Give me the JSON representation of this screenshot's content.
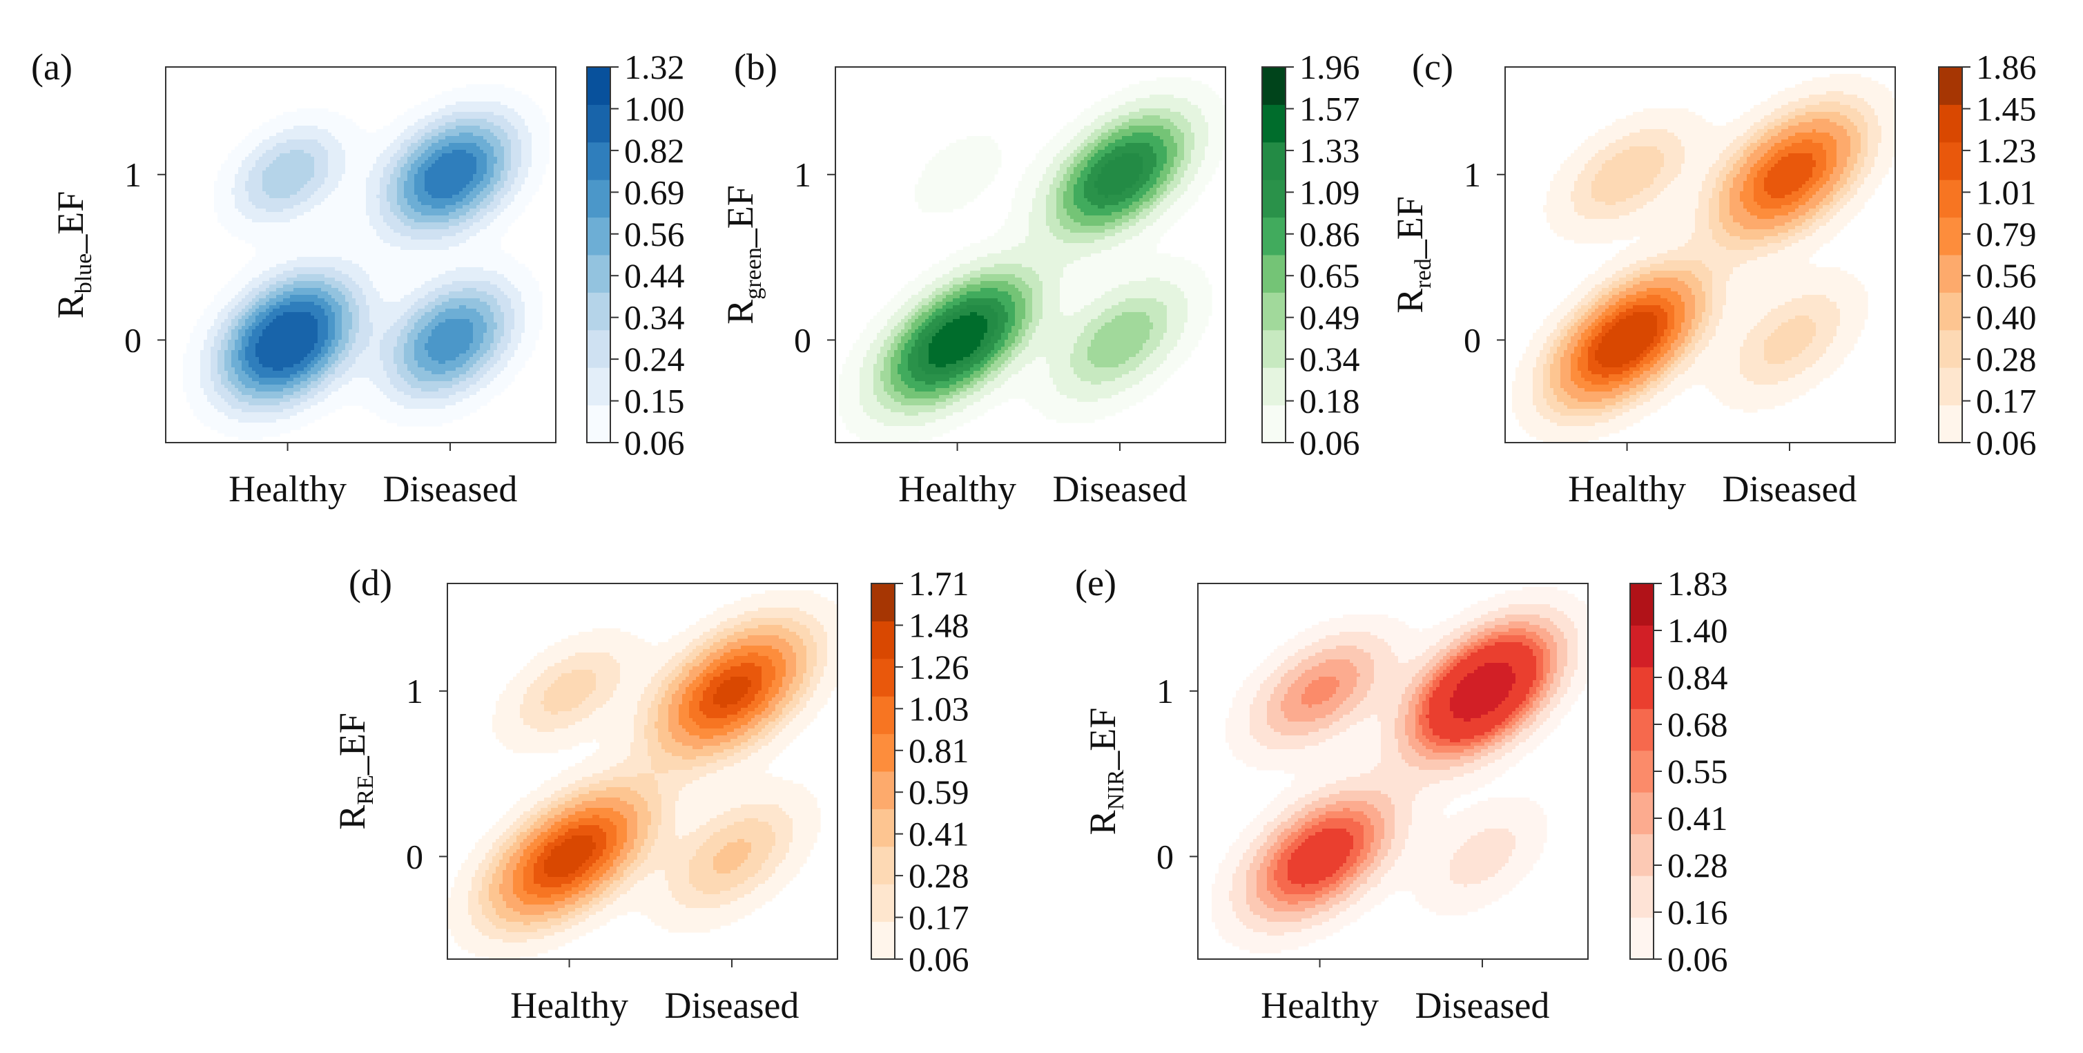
{
  "figure": {
    "description_hidden": false
  },
  "chart_data": [
    {
      "panel": "(a)",
      "type": "heatmap",
      "subtype": "kde-contour",
      "categories": [
        "Healthy",
        "Diseased"
      ],
      "y_ticks": [
        "0",
        "1"
      ],
      "ylabel": {
        "base": "R",
        "sub": "blue",
        "suffix": "_EF"
      },
      "xlim": [
        -0.75,
        1.65
      ],
      "ylim": [
        -0.62,
        1.65
      ],
      "colormap": "blues",
      "colorbar_ticks": [
        "0.06",
        "0.15",
        "0.24",
        "0.34",
        "0.44",
        "0.56",
        "0.69",
        "0.82",
        "1.00",
        "1.32"
      ],
      "colors": [
        "#f7fbff",
        "#e3eef9",
        "#cfe1f2",
        "#b5d4e9",
        "#93c3df",
        "#6daed5",
        "#4b97c9",
        "#2f7ebc",
        "#1864aa",
        "#08519c"
      ],
      "peaks": [
        {
          "x": 0,
          "y": 0,
          "density": 1.32,
          "sx": 0.26,
          "sy": 0.24,
          "rho": 0.35
        },
        {
          "x": 1,
          "y": 1,
          "density": 1.0,
          "sx": 0.26,
          "sy": 0.23,
          "rho": 0.35
        },
        {
          "x": 1,
          "y": 0,
          "density": 0.82,
          "sx": 0.25,
          "sy": 0.23,
          "rho": 0.35
        },
        {
          "x": 0,
          "y": 1,
          "density": 0.44,
          "sx": 0.23,
          "sy": 0.2,
          "rho": 0.35
        }
      ]
    },
    {
      "panel": "(b)",
      "type": "heatmap",
      "subtype": "kde-contour",
      "categories": [
        "Healthy",
        "Diseased"
      ],
      "y_ticks": [
        "0",
        "1"
      ],
      "ylabel": {
        "base": "R",
        "sub": "green",
        "suffix": "_EF"
      },
      "xlim": [
        -0.75,
        1.65
      ],
      "ylim": [
        -0.62,
        1.65
      ],
      "colormap": "greens",
      "colorbar_ticks": [
        "0.06",
        "0.18",
        "0.34",
        "0.49",
        "0.65",
        "0.86",
        "1.09",
        "1.33",
        "1.57",
        "1.96"
      ],
      "colors": [
        "#f7fcf5",
        "#e5f5e0",
        "#c7e9c0",
        "#a1d99b",
        "#74c476",
        "#41ab5d",
        "#2a924a",
        "#238b45",
        "#006d2c",
        "#00441b"
      ],
      "peaks": [
        {
          "x": 0,
          "y": 0,
          "density": 1.96,
          "sx": 0.28,
          "sy": 0.24,
          "rho": 0.55
        },
        {
          "x": 1,
          "y": 1,
          "density": 1.57,
          "sx": 0.26,
          "sy": 0.23,
          "rho": 0.5
        },
        {
          "x": 1,
          "y": 0,
          "density": 0.65,
          "sx": 0.26,
          "sy": 0.23,
          "rho": 0.5
        },
        {
          "x": 0,
          "y": 1,
          "density": 0.12,
          "sx": 0.22,
          "sy": 0.2,
          "rho": 0.5
        }
      ]
    },
    {
      "panel": "(c)",
      "type": "heatmap",
      "subtype": "kde-contour",
      "categories": [
        "Healthy",
        "Diseased"
      ],
      "y_ticks": [
        "0",
        "1"
      ],
      "ylabel": {
        "base": "R",
        "sub": "red",
        "suffix": "_EF"
      },
      "xlim": [
        -0.75,
        1.65
      ],
      "ylim": [
        -0.62,
        1.65
      ],
      "colormap": "oranges",
      "colorbar_ticks": [
        "0.06",
        "0.17",
        "0.28",
        "0.40",
        "0.56",
        "0.79",
        "1.01",
        "1.23",
        "1.45",
        "1.86"
      ],
      "colors": [
        "#fff5eb",
        "#fee6ce",
        "#fdd9b4",
        "#fdc591",
        "#fdaa6c",
        "#fd8d3c",
        "#f77522",
        "#e9580c",
        "#d94801",
        "#a63603"
      ],
      "peaks": [
        {
          "x": 0,
          "y": 0,
          "density": 1.86,
          "sx": 0.27,
          "sy": 0.24,
          "rho": 0.55
        },
        {
          "x": 1,
          "y": 1,
          "density": 1.45,
          "sx": 0.27,
          "sy": 0.24,
          "rho": 0.5
        },
        {
          "x": 0,
          "y": 1,
          "density": 0.4,
          "sx": 0.26,
          "sy": 0.21,
          "rho": 0.5
        },
        {
          "x": 1,
          "y": 0,
          "density": 0.34,
          "sx": 0.26,
          "sy": 0.23,
          "rho": 0.5
        }
      ]
    },
    {
      "panel": "(d)",
      "type": "heatmap",
      "subtype": "kde-contour",
      "categories": [
        "Healthy",
        "Diseased"
      ],
      "y_ticks": [
        "0",
        "1"
      ],
      "ylabel": {
        "base": "R",
        "sub": "RE",
        "suffix": "_EF"
      },
      "xlim": [
        -0.75,
        1.65
      ],
      "ylim": [
        -0.62,
        1.65
      ],
      "colormap": "oranges",
      "colorbar_ticks": [
        "0.06",
        "0.17",
        "0.28",
        "0.41",
        "0.59",
        "0.81",
        "1.03",
        "1.26",
        "1.48",
        "1.71"
      ],
      "colors": [
        "#fff5eb",
        "#fee6ce",
        "#fdd9b4",
        "#fdc591",
        "#fdaa6c",
        "#fd8d3c",
        "#f77522",
        "#e9580c",
        "#d94801",
        "#a63603"
      ],
      "peaks": [
        {
          "x": 0,
          "y": 0,
          "density": 1.71,
          "sx": 0.29,
          "sy": 0.24,
          "rho": 0.55
        },
        {
          "x": 1,
          "y": 1,
          "density": 1.6,
          "sx": 0.28,
          "sy": 0.24,
          "rho": 0.5
        },
        {
          "x": 1,
          "y": 0,
          "density": 0.45,
          "sx": 0.27,
          "sy": 0.23,
          "rho": 0.5
        },
        {
          "x": 0,
          "y": 1,
          "density": 0.35,
          "sx": 0.25,
          "sy": 0.2,
          "rho": 0.5
        }
      ]
    },
    {
      "panel": "(e)",
      "type": "heatmap",
      "subtype": "kde-contour",
      "categories": [
        "Healthy",
        "Diseased"
      ],
      "y_ticks": [
        "0",
        "1"
      ],
      "ylabel": {
        "base": "R",
        "sub": "NIR",
        "suffix": "_EF"
      },
      "xlim": [
        -0.75,
        1.65
      ],
      "ylim": [
        -0.62,
        1.65
      ],
      "colormap": "reds",
      "colorbar_ticks": [
        "0.06",
        "0.16",
        "0.28",
        "0.41",
        "0.55",
        "0.68",
        "0.84",
        "1.40",
        "1.83"
      ],
      "colors": [
        "#fff5f0",
        "#fee3d6",
        "#fcc9b4",
        "#fcab8f",
        "#fb8b6a",
        "#f6694d",
        "#ea3f2f",
        "#d21f26",
        "#b11218"
      ],
      "peaks": [
        {
          "x": 1,
          "y": 1,
          "density": 1.83,
          "sx": 0.27,
          "sy": 0.24,
          "rho": 0.5
        },
        {
          "x": 0,
          "y": 0,
          "density": 1.1,
          "sx": 0.28,
          "sy": 0.24,
          "rho": 0.5
        },
        {
          "x": 0,
          "y": 1,
          "density": 0.6,
          "sx": 0.27,
          "sy": 0.22,
          "rho": 0.5
        },
        {
          "x": 1,
          "y": 0,
          "density": 0.22,
          "sx": 0.25,
          "sy": 0.22,
          "rho": 0.5
        }
      ]
    }
  ]
}
